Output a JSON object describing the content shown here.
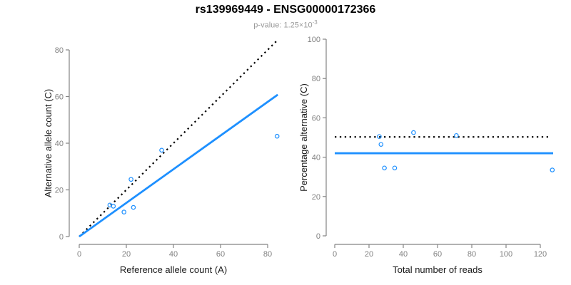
{
  "title": "rs139969449 - ENSG00000172366",
  "subtitle": {
    "prefix": "p-value: 1.25×10",
    "exponent": "-3"
  },
  "colors": {
    "accent_blue": "#1E90FF",
    "line_black": "#000000",
    "axis_gray": "#848484",
    "tick_label_gray": "#808080",
    "label_black": "#1a1a1a",
    "subtitle_gray": "#9a9a9a"
  },
  "chart_data": [
    {
      "type": "scatter",
      "name": "allele-counts-panel",
      "xlabel": "Reference allele count (A)",
      "ylabel": "Alternative allele count (C)",
      "xlim": [
        0,
        84.3
      ],
      "ylim": [
        0,
        84.3
      ],
      "xticks": [
        0,
        20,
        40,
        60,
        80
      ],
      "yticks": [
        0,
        20,
        40,
        60,
        80
      ],
      "grid": false,
      "legend": "none",
      "points": [
        [
          13,
          13.5
        ],
        [
          14.5,
          13
        ],
        [
          19,
          10.5
        ],
        [
          22,
          24.5
        ],
        [
          23,
          12.5
        ],
        [
          35,
          37
        ],
        [
          84,
          43
        ]
      ],
      "lines": [
        {
          "name": "identity-line",
          "style": "dotted",
          "color": "#000000",
          "x": [
            0,
            84.3
          ],
          "y": [
            0,
            84.3
          ]
        },
        {
          "name": "fit-line",
          "style": "solid",
          "color": "#1E90FF",
          "x": [
            0,
            84.3
          ],
          "y": [
            0,
            60.8
          ]
        }
      ]
    },
    {
      "type": "scatter",
      "name": "percentage-panel",
      "xlabel": "Total number of reads",
      "ylabel": "Percentage alternative (C)",
      "xlim": [
        0,
        127.5
      ],
      "ylim": [
        0,
        100
      ],
      "xticks": [
        0,
        20,
        40,
        60,
        80,
        100,
        120
      ],
      "yticks": [
        0,
        20,
        40,
        60,
        80,
        100
      ],
      "grid": false,
      "legend": "none",
      "points": [
        [
          26,
          50.5
        ],
        [
          27,
          46.5
        ],
        [
          29,
          34.5
        ],
        [
          35,
          34.5
        ],
        [
          46,
          52.5
        ],
        [
          71,
          51
        ],
        [
          127,
          33.5
        ]
      ],
      "lines": [
        {
          "name": "expected-50pct-line",
          "style": "dotted",
          "color": "#000000",
          "x": [
            0,
            124.6
          ],
          "y": [
            50.3,
            50.3
          ]
        },
        {
          "name": "mean-percentage-line",
          "style": "solid",
          "color": "#1E90FF",
          "x": [
            0,
            127.5
          ],
          "y": [
            42,
            42
          ]
        }
      ]
    }
  ]
}
